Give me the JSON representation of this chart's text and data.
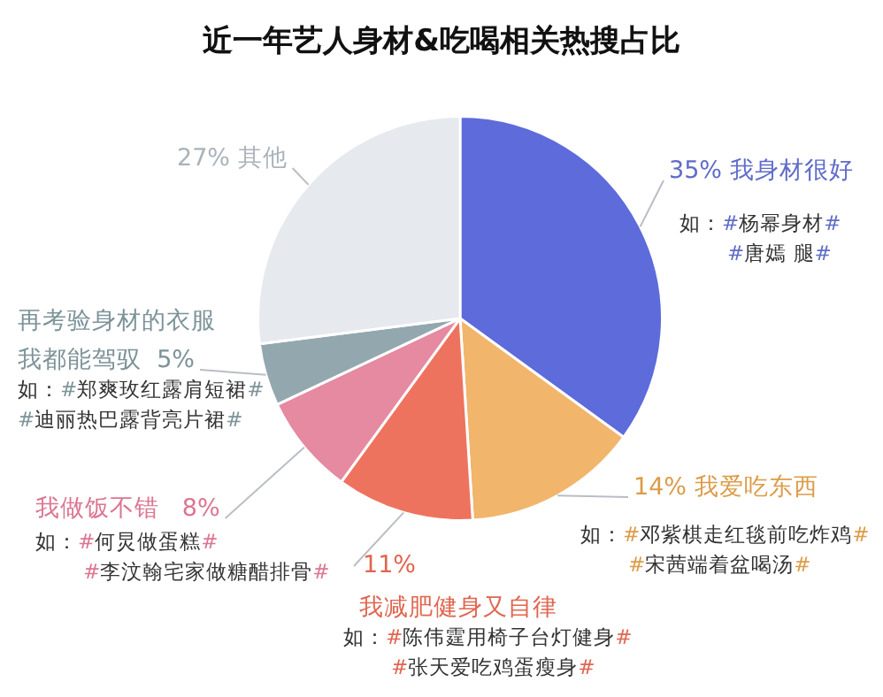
{
  "chart_data": {
    "type": "pie",
    "title": "近一年艺人身材&吃喝相关热搜占比",
    "categories": [
      "我身材很好",
      "我爱吃东西",
      "我减肥健身又自律",
      "我做饭不错",
      "再考验身材的衣服我都能驾驭",
      "其他"
    ],
    "values": [
      35,
      14,
      11,
      8,
      5,
      27
    ],
    "value_labels": [
      "35%",
      "14%",
      "11%",
      "8%",
      "5%",
      "27%"
    ],
    "colors": [
      "#5d6bdb",
      "#f1b56c",
      "#ee735f",
      "#e58aa0",
      "#93a8ae",
      "#e6e9ee"
    ],
    "legend": false,
    "annotations": [
      "如：#杨幂身材#",
      "#唐嫣 腿#",
      "如：#邓紫棋走红毯前吃炸鸡#",
      "#宋茜端着盆喝汤#",
      "如：#陈伟霆用椅子台灯健身#",
      "#张天爱吃鸡蛋瘦身#",
      "如：#何炅做蛋糕#",
      "#李汶翰宅家做糖醋排骨#",
      "如：#郑爽玫红露肩短裙#",
      "#迪丽热巴露背亮片裙#"
    ]
  }
}
